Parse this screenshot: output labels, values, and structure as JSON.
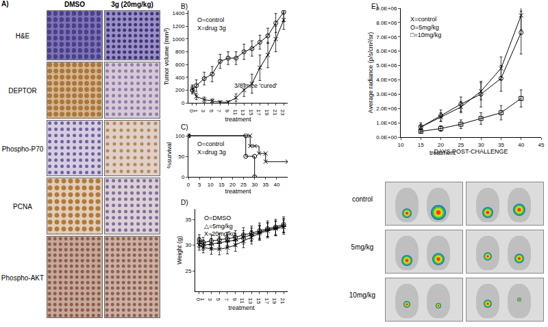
{
  "panel_a": {
    "panel_label": "A)",
    "columns": [
      "DMSO",
      "3g (20mg/kg)"
    ],
    "rows": [
      "H&E",
      "DEPTOR",
      "Phospho-P70",
      "PCNA",
      "Phospho-AKT"
    ]
  },
  "imaging": {
    "rows": [
      "control",
      "5mg/kg",
      "10mg/kg"
    ]
  },
  "chart_data": [
    {
      "type": "line",
      "panel_label": "B)",
      "x_label": "treatment",
      "y_label": "Tumor volume (mm³)",
      "annotations": [
        "3/8 mice 'cured'"
      ],
      "legend": "upper left",
      "grid": false,
      "xlim": [
        -1,
        24
      ],
      "xticks": [
        0,
        1,
        3,
        5,
        7,
        9,
        11,
        13,
        15,
        17,
        19,
        21,
        23
      ],
      "ylim": [
        0,
        1450
      ],
      "yticks": [
        0,
        200,
        400,
        600,
        800,
        1000,
        1200,
        1400
      ],
      "x": [
        0,
        1,
        3,
        5,
        7,
        9,
        11,
        13,
        15,
        17,
        19,
        21,
        23
      ],
      "series": [
        {
          "name": "O=control",
          "color": "#000000",
          "marker": "circle-open",
          "values": [
            200,
            270,
            380,
            450,
            650,
            700,
            700,
            800,
            850,
            950,
            1050,
            1250,
            1420
          ],
          "errors": [
            60,
            90,
            100,
            120,
            110,
            100,
            100,
            120,
            120,
            110,
            120,
            150,
            150
          ]
        },
        {
          "name": "X=drug 3g",
          "color": "#000000",
          "marker": "x-thin-open",
          "values": [
            220,
            100,
            50,
            30,
            10,
            10,
            80,
            200,
            300,
            550,
            750,
            1000,
            1300
          ],
          "errors": [
            60,
            50,
            40,
            30,
            20,
            20,
            60,
            100,
            150,
            200,
            200,
            200,
            150
          ]
        }
      ]
    },
    {
      "type": "step",
      "panel_label": "C)",
      "x_label": "treatment",
      "y_label": "%survival",
      "legend": "upper left",
      "grid": false,
      "xlim": [
        0,
        45
      ],
      "xticks": [
        0,
        5,
        10,
        15,
        20,
        25,
        30,
        35,
        40
      ],
      "ylim": [
        0,
        105
      ],
      "yticks": [
        0,
        50,
        100
      ],
      "series": [
        {
          "name": "O=control",
          "color": "#000000",
          "marker": "circle-open",
          "x": [
            0,
            26,
            26,
            30,
            30
          ],
          "values": [
            100,
            100,
            50,
            50,
            0
          ]
        },
        {
          "name": "X=drug 3g",
          "color": "#000000",
          "marker": "x-thin-open",
          "x": [
            0,
            28,
            28,
            30,
            32,
            35,
            35,
            45
          ],
          "values": [
            100,
            100,
            75,
            75,
            57,
            57,
            37,
            37
          ]
        }
      ]
    },
    {
      "type": "line",
      "panel_label": "D)",
      "x_label": "treatment",
      "y_label": "Weight (g)",
      "legend": "upper left",
      "grid": false,
      "xlim": [
        -1,
        22
      ],
      "xticks": [
        0,
        1,
        3,
        5,
        7,
        9,
        11,
        13,
        15,
        17,
        19,
        21
      ],
      "ylim": [
        21,
        37
      ],
      "yticks": [
        25,
        30,
        35
      ],
      "x": [
        0,
        1,
        3,
        5,
        7,
        9,
        11,
        13,
        15,
        17,
        19,
        21
      ],
      "series": [
        {
          "name": "O=DMSO",
          "color": "#000000",
          "marker": "circle-open",
          "values": [
            31,
            30.5,
            30.8,
            31,
            31.2,
            31.5,
            32,
            32.3,
            32.8,
            33.2,
            33.5,
            34
          ],
          "errors": [
            1,
            1,
            1.2,
            1.2,
            1.3,
            1.3,
            1.4,
            1.4,
            1.5,
            1.5,
            1.5,
            1.5
          ]
        },
        {
          "name": "△=5mg/kg",
          "color": "#000000",
          "marker": "triangle-up-open",
          "values": [
            30.5,
            30,
            30.2,
            30.5,
            30.8,
            31,
            31.5,
            32,
            32.5,
            33,
            33.3,
            33.8
          ],
          "errors": [
            1,
            1,
            1.1,
            1.1,
            1.2,
            1.2,
            1.3,
            1.3,
            1.4,
            1.4,
            1.4,
            1.4
          ]
        },
        {
          "name": "X=20mg/kg",
          "color": "#000000",
          "marker": "x-thin-open",
          "values": [
            30,
            29.5,
            29.3,
            29.2,
            29.5,
            30,
            30.8,
            31.5,
            32.3,
            32.8,
            33.2,
            33.5
          ],
          "errors": [
            1,
            1,
            1.1,
            1.1,
            1.2,
            1.2,
            1.3,
            1.3,
            1.4,
            1.4,
            1.4,
            1.4
          ]
        }
      ]
    },
    {
      "type": "line",
      "panel_label": "E)",
      "x_label": "DAYS POST-CHALLENGE",
      "y_label": "Average radiance (p/s/cm²/sr)",
      "annotations": [
        "treatment"
      ],
      "legend": "upper left",
      "grid": false,
      "xlim": [
        10,
        45
      ],
      "xticks": [
        10,
        15,
        20,
        25,
        30,
        35,
        40,
        45
      ],
      "ylim": [
        0,
        9000000
      ],
      "yticks": [
        {
          "value": 0,
          "label": "0.0E+00"
        },
        {
          "value": 1000000,
          "label": "1.0E+06"
        },
        {
          "value": 2000000,
          "label": "2.0E+06"
        },
        {
          "value": 3000000,
          "label": "3.0E+06"
        },
        {
          "value": 4000000,
          "label": "4.0E+06"
        },
        {
          "value": 5000000,
          "label": "5.0E+06"
        },
        {
          "value": 6000000,
          "label": "6.0E+06"
        },
        {
          "value": 7000000,
          "label": "7.0E+06"
        },
        {
          "value": 8000000,
          "label": "8.0E+06"
        },
        {
          "value": 9000000,
          "label": "9.0E+06"
        }
      ],
      "x": [
        15,
        20,
        25,
        30,
        35,
        40
      ],
      "series": [
        {
          "name": "X=control",
          "color": "#000000",
          "marker": "x-thin-open",
          "values": [
            700000,
            1400000,
            2100000,
            3200000,
            4800000,
            8500000
          ],
          "errors": [
            200000,
            300000,
            400000,
            600000,
            800000,
            1000000
          ]
        },
        {
          "name": "O=5mg/kg",
          "color": "#000000",
          "marker": "circle-open",
          "values": [
            700000,
            1500000,
            2300000,
            3000000,
            4100000,
            7300000
          ],
          "errors": [
            300000,
            400000,
            500000,
            900000,
            900000,
            1500000
          ]
        },
        {
          "name": "□=10mg/kg",
          "color": "#000000",
          "marker": "square-open",
          "values": [
            400000,
            600000,
            900000,
            1300000,
            1700000,
            2700000
          ],
          "errors": [
            100000,
            200000,
            300000,
            400000,
            500000,
            600000
          ]
        }
      ]
    }
  ]
}
